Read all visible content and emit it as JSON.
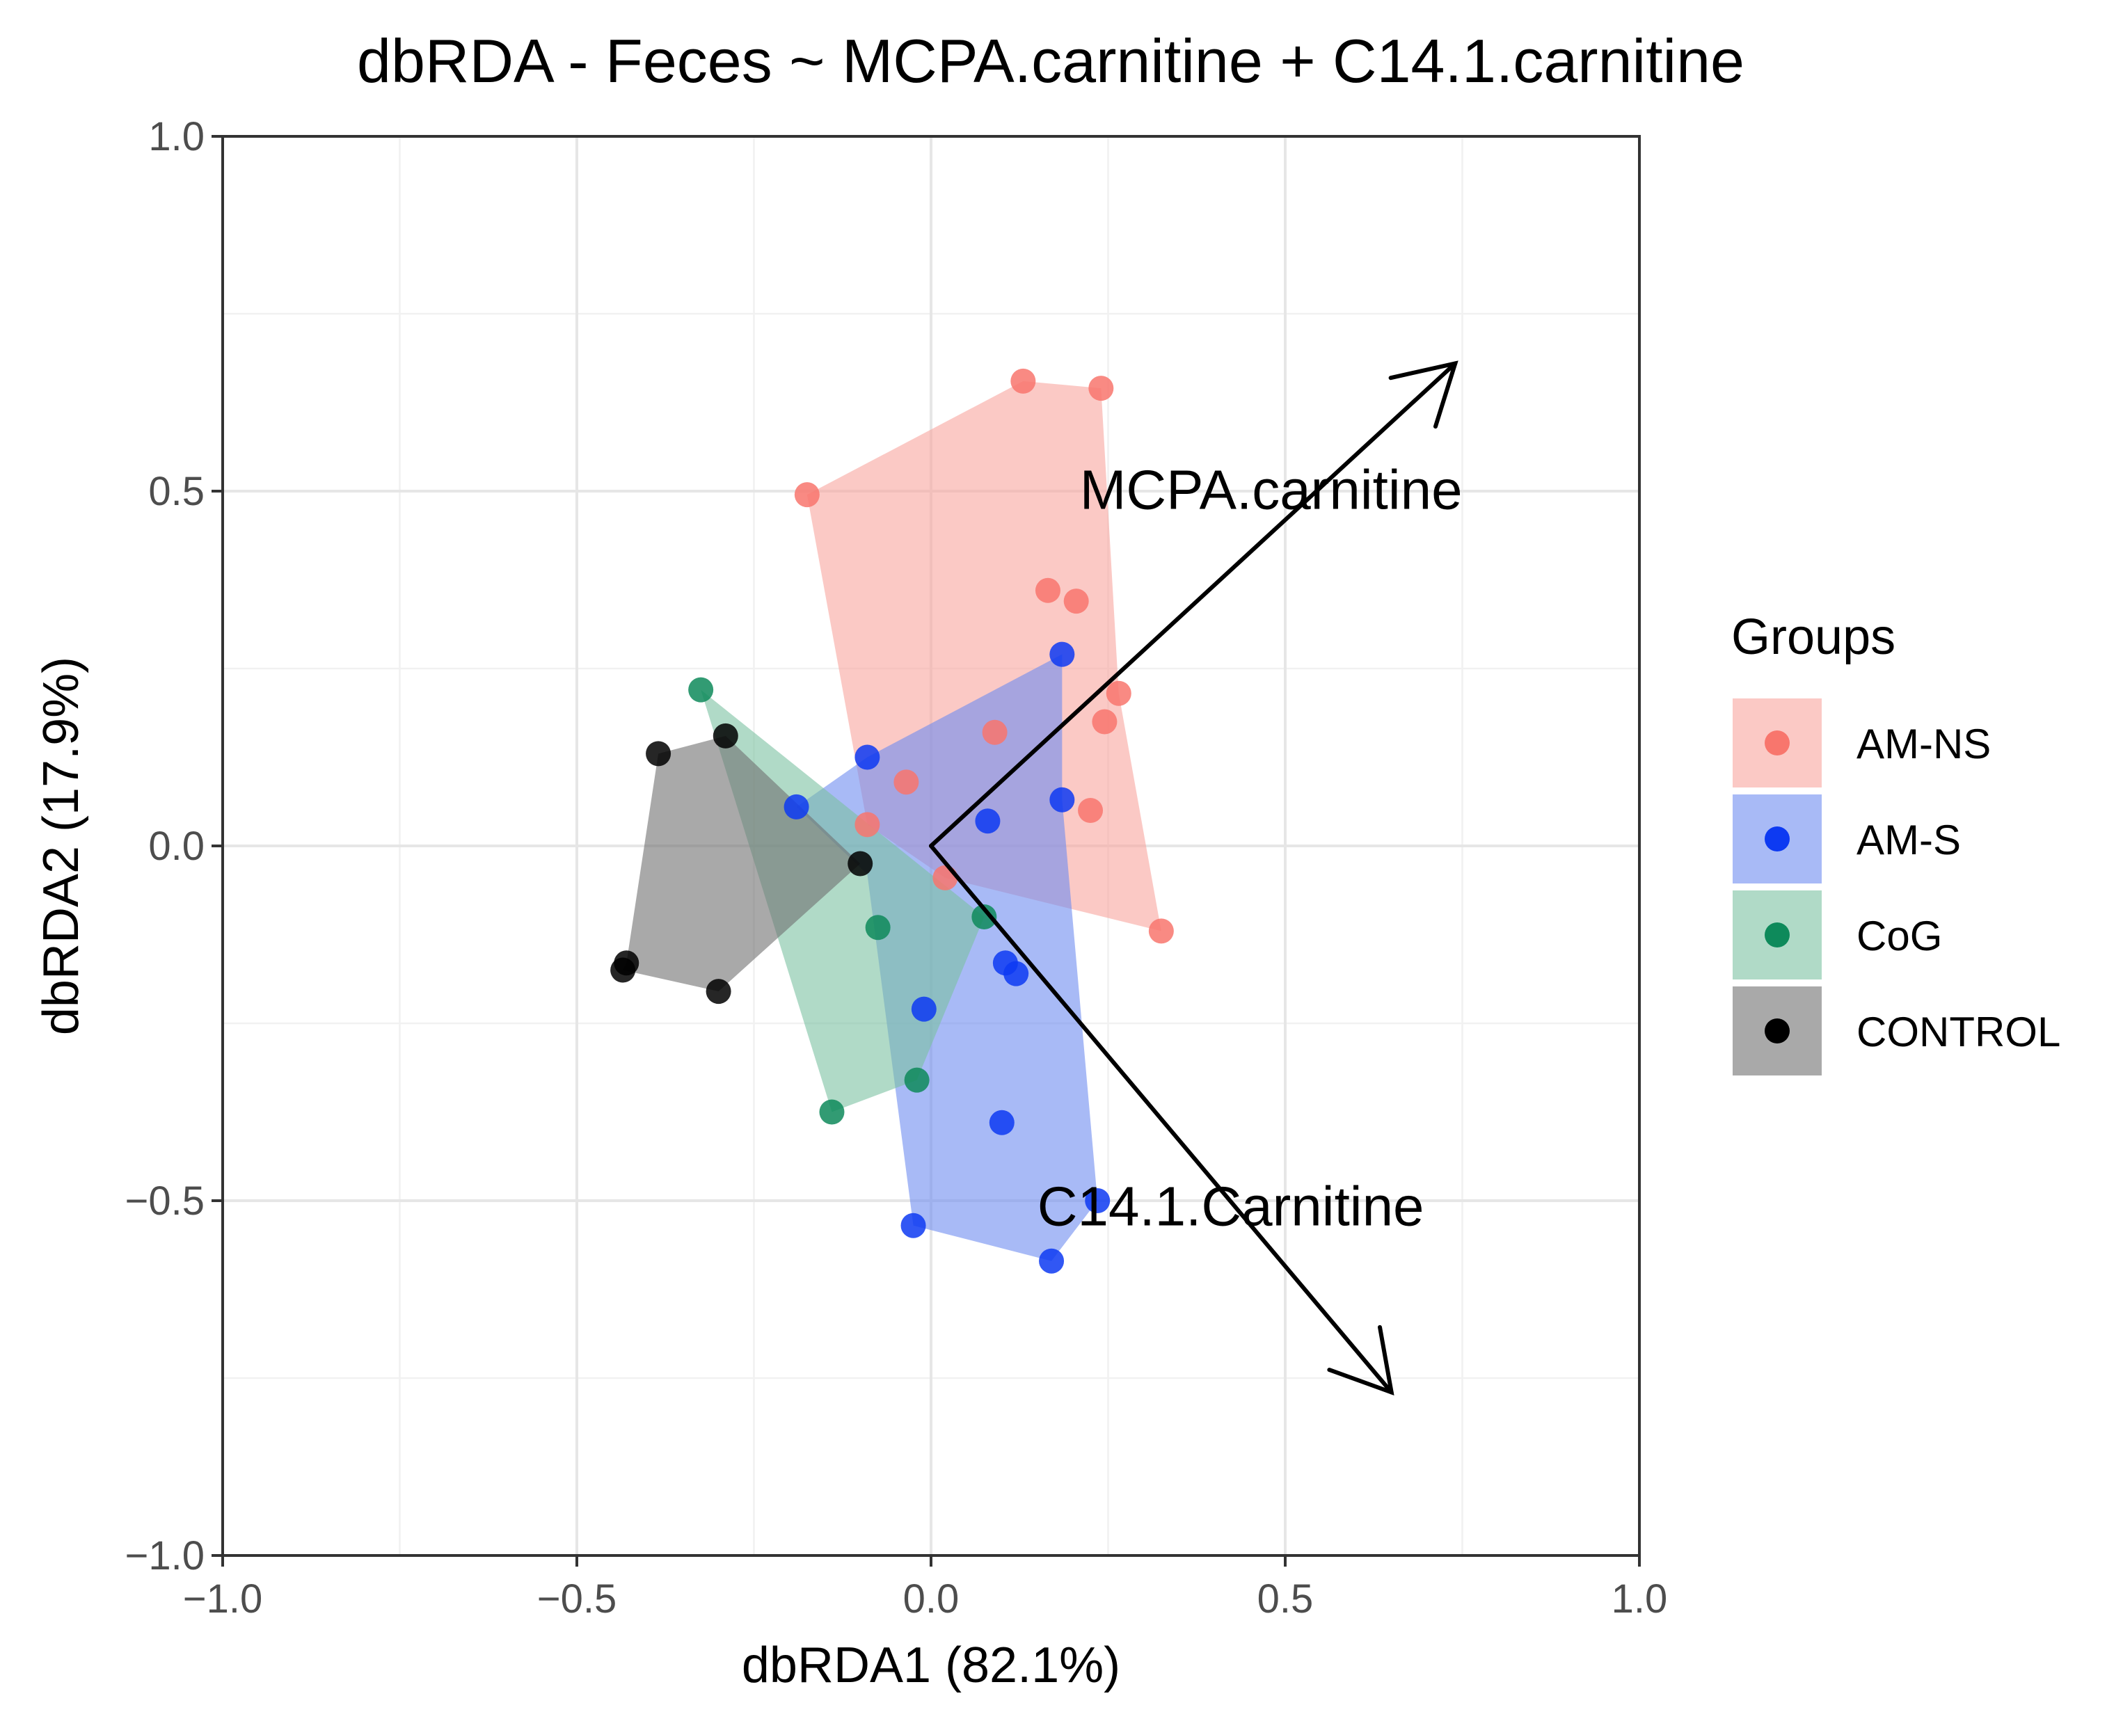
{
  "chart_data": {
    "type": "scatter",
    "title": "dbRDA - Feces ~ MCPA.carnitine + C14.1.carnitine",
    "xlabel": "dbRDA1 (82.1%)",
    "ylabel": "dbRDA2 (17.9%)",
    "xlim": [
      -1.0,
      1.0
    ],
    "ylim": [
      -1.0,
      1.0
    ],
    "x_ticks": [
      -1.0,
      -0.5,
      0.0,
      0.5,
      1.0
    ],
    "y_ticks": [
      -1.0,
      -0.5,
      0.0,
      0.5,
      1.0
    ],
    "x_tick_labels": [
      "−1.0",
      "−0.5",
      "0.0",
      "0.5",
      "1.0"
    ],
    "y_tick_labels": [
      "−1.0",
      "−0.5",
      "0.0",
      "0.5",
      "1.0"
    ],
    "grid": true,
    "legend": {
      "title": "Groups",
      "position": "right"
    },
    "series": [
      {
        "name": "AM-NS",
        "color": "#F8766D",
        "hull_color": "#F8A59E",
        "points": [
          [
            0.13,
            0.655
          ],
          [
            0.24,
            0.645
          ],
          [
            -0.175,
            0.495
          ],
          [
            0.165,
            0.36
          ],
          [
            0.205,
            0.345
          ],
          [
            0.265,
            0.215
          ],
          [
            0.245,
            0.175
          ],
          [
            0.09,
            0.16
          ],
          [
            -0.035,
            0.09
          ],
          [
            -0.09,
            0.03
          ],
          [
            0.225,
            0.05
          ],
          [
            0.325,
            -0.12
          ],
          [
            0.02,
            -0.045
          ]
        ],
        "hull": [
          [
            -0.175,
            0.495
          ],
          [
            0.13,
            0.655
          ],
          [
            0.24,
            0.645
          ],
          [
            0.265,
            0.215
          ],
          [
            0.325,
            -0.12
          ],
          [
            0.02,
            -0.045
          ],
          [
            -0.09,
            0.03
          ]
        ]
      },
      {
        "name": "AM-S",
        "color": "#0D3AF2",
        "hull_color": "#6E8CF0",
        "points": [
          [
            0.185,
            0.27
          ],
          [
            -0.09,
            0.125
          ],
          [
            -0.19,
            0.055
          ],
          [
            0.08,
            0.035
          ],
          [
            0.185,
            0.065
          ],
          [
            0.105,
            -0.165
          ],
          [
            0.12,
            -0.18
          ],
          [
            -0.01,
            -0.23
          ],
          [
            0.1,
            -0.39
          ],
          [
            0.235,
            -0.5
          ],
          [
            -0.025,
            -0.535
          ],
          [
            0.17,
            -0.585
          ]
        ],
        "hull": [
          [
            -0.19,
            0.055
          ],
          [
            -0.09,
            0.125
          ],
          [
            0.185,
            0.27
          ],
          [
            0.185,
            0.065
          ],
          [
            0.235,
            -0.5
          ],
          [
            0.17,
            -0.585
          ],
          [
            -0.025,
            -0.535
          ],
          [
            -0.09,
            -0.04
          ]
        ]
      },
      {
        "name": "CoG",
        "color": "#0E8A5B",
        "hull_color": "#7CC2A2",
        "points": [
          [
            -0.325,
            0.22
          ],
          [
            -0.075,
            -0.115
          ],
          [
            0.075,
            -0.1
          ],
          [
            -0.02,
            -0.33
          ],
          [
            -0.14,
            -0.375
          ]
        ],
        "hull": [
          [
            -0.325,
            0.22
          ],
          [
            0.075,
            -0.1
          ],
          [
            -0.02,
            -0.33
          ],
          [
            -0.14,
            -0.375
          ]
        ]
      },
      {
        "name": "CONTROL",
        "color": "#000000",
        "hull_color": "#707070",
        "points": [
          [
            -0.385,
            0.13
          ],
          [
            -0.29,
            0.155
          ],
          [
            -0.1,
            -0.025
          ],
          [
            -0.43,
            -0.165
          ],
          [
            -0.435,
            -0.175
          ],
          [
            -0.3,
            -0.205
          ]
        ],
        "hull": [
          [
            -0.385,
            0.13
          ],
          [
            -0.29,
            0.155
          ],
          [
            -0.1,
            -0.025
          ],
          [
            -0.3,
            -0.205
          ],
          [
            -0.435,
            -0.175
          ],
          [
            -0.43,
            -0.165
          ]
        ]
      }
    ],
    "arrows": [
      {
        "label": "MCPA.carnitine",
        "from": [
          0.0,
          0.0
        ],
        "to": [
          0.74,
          0.68
        ],
        "label_at": [
          0.21,
          0.475
        ]
      },
      {
        "label": "C14.1.Carnitine",
        "from": [
          0.0,
          0.0
        ],
        "to": [
          0.65,
          -0.77
        ],
        "label_at": [
          0.15,
          -0.535
        ]
      }
    ]
  }
}
